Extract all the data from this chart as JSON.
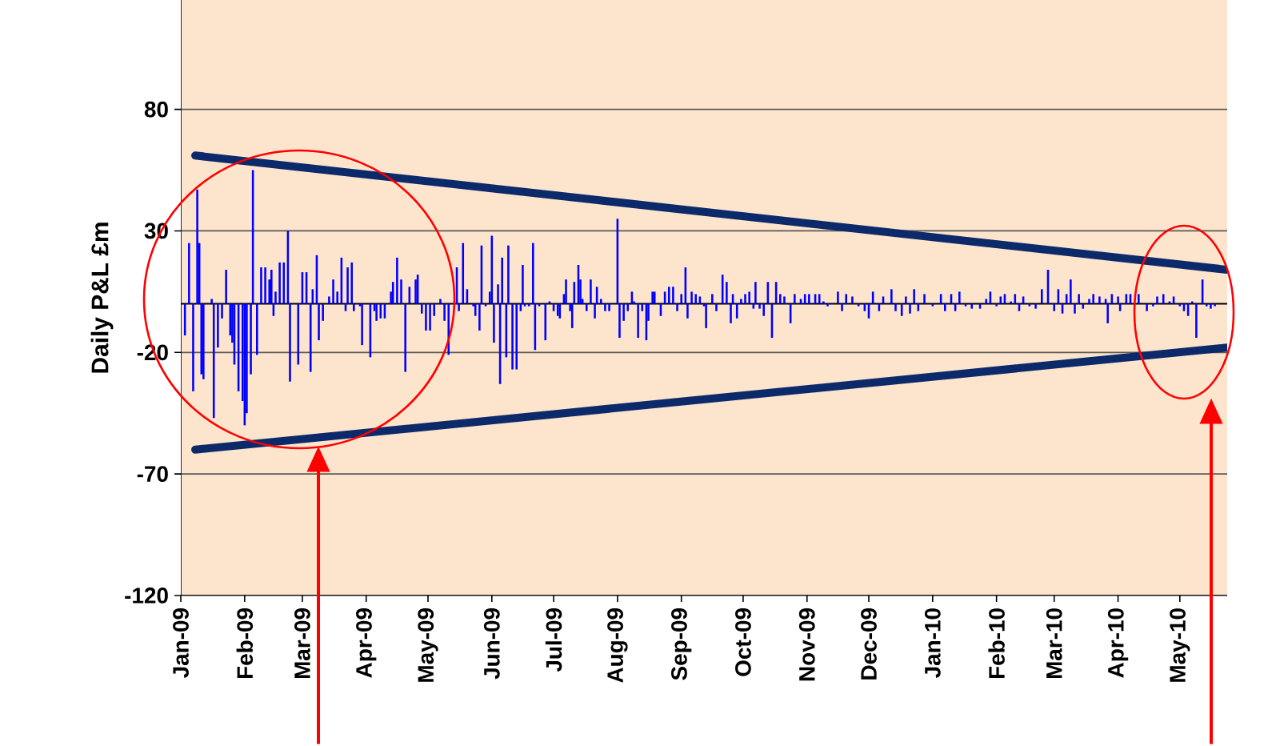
{
  "chart_data": {
    "type": "bar",
    "ylabel": "Daily P&L £m",
    "ylim": [
      -120,
      125
    ],
    "yticks": [
      -120,
      -70,
      -20,
      30,
      80
    ],
    "grid": "y",
    "xlim": [
      "2009-01-01",
      "2010-05-24"
    ],
    "xticks": [
      {
        "value": "2009-01-01",
        "label": "Jan-09"
      },
      {
        "value": "2009-02-01",
        "label": "Feb-09"
      },
      {
        "value": "2009-03-01",
        "label": "Mar-09"
      },
      {
        "value": "2009-04-01",
        "label": "Apr-09"
      },
      {
        "value": "2009-05-01",
        "label": "May-09"
      },
      {
        "value": "2009-06-01",
        "label": "Jun-09"
      },
      {
        "value": "2009-07-01",
        "label": "Jul-09"
      },
      {
        "value": "2009-08-01",
        "label": "Aug-09"
      },
      {
        "value": "2009-09-01",
        "label": "Sep-09"
      },
      {
        "value": "2009-10-01",
        "label": "Oct-09"
      },
      {
        "value": "2009-11-01",
        "label": "Nov-09"
      },
      {
        "value": "2009-12-01",
        "label": "Dec-09"
      },
      {
        "value": "2010-01-01",
        "label": "Jan-10"
      },
      {
        "value": "2010-02-01",
        "label": "Feb-10"
      },
      {
        "value": "2010-03-01",
        "label": "Mar-10"
      },
      {
        "value": "2010-04-01",
        "label": "Apr-10"
      },
      {
        "value": "2010-05-01",
        "label": "May-10"
      }
    ],
    "ref_lines": [
      {
        "axis": "y",
        "value": 0,
        "color": "#000000"
      }
    ],
    "series": [
      {
        "color": "#0000ff",
        "x": [
          "2009-01-03",
          "2009-01-05",
          "2009-01-07",
          "2009-01-09",
          "2009-01-10",
          "2009-01-11",
          "2009-01-12",
          "2009-01-16",
          "2009-01-17",
          "2009-01-19",
          "2009-01-21",
          "2009-01-23",
          "2009-01-25",
          "2009-01-26",
          "2009-01-27",
          "2009-01-29",
          "2009-01-31",
          "2009-02-01",
          "2009-02-02",
          "2009-02-04",
          "2009-02-05",
          "2009-02-07",
          "2009-02-09",
          "2009-02-11",
          "2009-02-13",
          "2009-02-14",
          "2009-02-15",
          "2009-02-16",
          "2009-02-18",
          "2009-02-20",
          "2009-02-22",
          "2009-02-23",
          "2009-02-27",
          "2009-03-01",
          "2009-03-03",
          "2009-03-05",
          "2009-03-06",
          "2009-03-08",
          "2009-03-09",
          "2009-03-11",
          "2009-03-14",
          "2009-03-16",
          "2009-03-18",
          "2009-03-20",
          "2009-03-22",
          "2009-03-23",
          "2009-03-25",
          "2009-03-26",
          "2009-03-29",
          "2009-03-30",
          "2009-04-03",
          "2009-04-05",
          "2009-04-06",
          "2009-04-08",
          "2009-04-10",
          "2009-04-13",
          "2009-04-14",
          "2009-04-16",
          "2009-04-18",
          "2009-04-20",
          "2009-04-22",
          "2009-04-25",
          "2009-04-26",
          "2009-04-28",
          "2009-04-30",
          "2009-05-02",
          "2009-05-04",
          "2009-05-07",
          "2009-05-09",
          "2009-05-11",
          "2009-05-15",
          "2009-05-16",
          "2009-05-18",
          "2009-05-20",
          "2009-05-23",
          "2009-05-24",
          "2009-05-26",
          "2009-05-27",
          "2009-05-29",
          "2009-05-31",
          "2009-06-01",
          "2009-06-02",
          "2009-06-04",
          "2009-06-05",
          "2009-06-06",
          "2009-06-08",
          "2009-06-09",
          "2009-06-11",
          "2009-06-13",
          "2009-06-15",
          "2009-06-16",
          "2009-06-17",
          "2009-06-19",
          "2009-06-21",
          "2009-06-22",
          "2009-06-24",
          "2009-06-27",
          "2009-06-29",
          "2009-07-01",
          "2009-07-03",
          "2009-07-04",
          "2009-07-06",
          "2009-07-07",
          "2009-07-09",
          "2009-07-10",
          "2009-07-11",
          "2009-07-13",
          "2009-07-14",
          "2009-07-15",
          "2009-07-17",
          "2009-07-19",
          "2009-07-21",
          "2009-07-22",
          "2009-07-24",
          "2009-07-26",
          "2009-07-28",
          "2009-08-01",
          "2009-08-02",
          "2009-08-04",
          "2009-08-06",
          "2009-08-08",
          "2009-08-09",
          "2009-08-11",
          "2009-08-13",
          "2009-08-15",
          "2009-08-16",
          "2009-08-18",
          "2009-08-19",
          "2009-08-22",
          "2009-08-24",
          "2009-08-26",
          "2009-08-28",
          "2009-08-30",
          "2009-09-01",
          "2009-09-03",
          "2009-09-04",
          "2009-09-06",
          "2009-09-08",
          "2009-09-10",
          "2009-09-12",
          "2009-09-13",
          "2009-09-16",
          "2009-09-18",
          "2009-09-21",
          "2009-09-23",
          "2009-09-25",
          "2009-09-26",
          "2009-09-28",
          "2009-09-30",
          "2009-10-02",
          "2009-10-04",
          "2009-10-06",
          "2009-10-07",
          "2009-10-09",
          "2009-10-11",
          "2009-10-13",
          "2009-10-15",
          "2009-10-17",
          "2009-10-19",
          "2009-10-21",
          "2009-10-24",
          "2009-10-26",
          "2009-10-29",
          "2009-10-31",
          "2009-11-02",
          "2009-11-05",
          "2009-11-07",
          "2009-11-09",
          "2009-11-11",
          "2009-11-16",
          "2009-11-18",
          "2009-11-20",
          "2009-11-23",
          "2009-11-26",
          "2009-11-29",
          "2009-12-01",
          "2009-12-03",
          "2009-12-06",
          "2009-12-08",
          "2009-12-12",
          "2009-12-14",
          "2009-12-17",
          "2009-12-19",
          "2009-12-21",
          "2009-12-23",
          "2009-12-25",
          "2009-12-28",
          "2010-01-01",
          "2010-01-05",
          "2010-01-07",
          "2010-01-10",
          "2010-01-12",
          "2010-01-14",
          "2010-01-17",
          "2010-01-20",
          "2010-01-24",
          "2010-01-27",
          "2010-01-29",
          "2010-02-01",
          "2010-02-03",
          "2010-02-05",
          "2010-02-08",
          "2010-02-10",
          "2010-02-12",
          "2010-02-14",
          "2010-02-17",
          "2010-02-20",
          "2010-02-23",
          "2010-02-26",
          "2010-03-01",
          "2010-03-03",
          "2010-03-05",
          "2010-03-07",
          "2010-03-09",
          "2010-03-11",
          "2010-03-13",
          "2010-03-15",
          "2010-03-18",
          "2010-03-20",
          "2010-03-23",
          "2010-03-26",
          "2010-03-27",
          "2010-03-29",
          "2010-04-01",
          "2010-04-02",
          "2010-04-05",
          "2010-04-07",
          "2010-04-11",
          "2010-04-15",
          "2010-04-18",
          "2010-04-20",
          "2010-04-23",
          "2010-04-26",
          "2010-04-28",
          "2010-05-01",
          "2010-05-03",
          "2010-05-05",
          "2010-05-07",
          "2010-05-09",
          "2010-05-12",
          "2010-05-14",
          "2010-05-16",
          "2010-05-18"
        ],
        "values": [
          -13,
          25,
          -36,
          47,
          25,
          -29,
          -31,
          2,
          -47,
          -18,
          -6,
          14,
          -13,
          -16,
          -25,
          -36,
          -40,
          -50,
          -45,
          -29,
          55,
          -21,
          15,
          15,
          10,
          14,
          -5,
          5,
          17,
          17,
          30,
          -32,
          -25,
          13,
          13,
          -28,
          6,
          20,
          -15,
          -7,
          3,
          10,
          5,
          19,
          -3,
          15,
          17,
          -3,
          -1,
          -17,
          -22,
          -3,
          -7,
          -6,
          -6,
          5,
          9,
          19,
          10,
          -28,
          7,
          10,
          12,
          -4,
          -11,
          -11,
          -5,
          2,
          -7,
          -21,
          15,
          -3,
          25,
          6,
          -1,
          -5,
          -11,
          24,
          -1,
          5,
          28,
          -16,
          8,
          -33,
          19,
          -22,
          24,
          -27,
          -27,
          -3,
          16,
          -1,
          -1,
          25,
          -19,
          -1,
          -15,
          1,
          -3,
          -5,
          -6,
          4,
          10,
          -3,
          -10,
          9,
          16,
          10,
          2,
          -3,
          10,
          -6,
          7,
          2,
          -3,
          -3,
          35,
          -14,
          -7,
          -3,
          5,
          1,
          -14,
          -3,
          -15,
          -7,
          5,
          5,
          -5,
          5,
          7,
          7,
          -3,
          4,
          15,
          -6,
          5,
          4,
          3,
          -1,
          -10,
          4,
          -3,
          12,
          9,
          -8,
          4,
          -6,
          2,
          4,
          5,
          -2,
          9,
          -2,
          -5,
          9,
          -14,
          9,
          4,
          3,
          -8,
          4,
          2,
          4,
          4,
          4,
          4,
          1,
          -1,
          5,
          -3,
          4,
          3,
          -1,
          -3,
          -6,
          5,
          -3,
          3,
          6,
          -3,
          -5,
          3,
          -4,
          6,
          -3,
          4,
          -1,
          4,
          -3,
          4,
          -3,
          5,
          -1,
          -2,
          -2,
          2,
          5,
          -1,
          3,
          4,
          1,
          4,
          -3,
          3,
          -1,
          -2,
          6,
          14,
          -3,
          6,
          -4,
          4,
          10,
          -4,
          4,
          -2,
          2,
          4,
          3,
          2,
          -8,
          4,
          3,
          -3,
          4,
          4,
          4,
          -3,
          -1,
          3,
          4,
          1,
          3,
          -1,
          -3,
          -5,
          1,
          -14,
          10,
          -1,
          -2,
          -1
        ]
      },
      {
        "type": "line",
        "color": "#0c2a6a",
        "x": [
          "2009-01-08",
          "2010-05-24"
        ],
        "values": [
          61,
          14
        ]
      },
      {
        "type": "line",
        "color": "#0c2a6a",
        "x": [
          "2009-01-08",
          "2010-05-24"
        ],
        "values": [
          -60,
          -18
        ]
      }
    ]
  }
}
